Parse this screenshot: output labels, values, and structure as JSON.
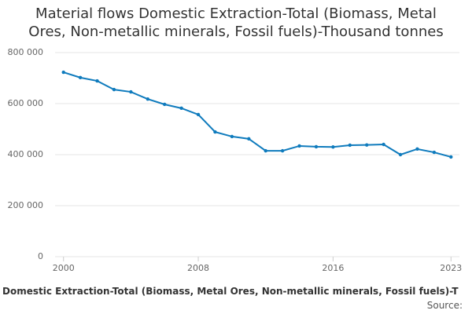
{
  "chart_data": {
    "type": "line",
    "title": "Material flows Domestic Extraction-Total (Biomass, Metal Ores, Non-metallic minerals, Fossil fuels)-Thousand tonnes",
    "x_label": "Domestic Extraction-Total (Biomass, Metal Ores, Non-metallic minerals, Fossil fuels)-T",
    "source": "Source:",
    "x": [
      2000,
      2001,
      2002,
      2003,
      2004,
      2005,
      2006,
      2007,
      2008,
      2009,
      2010,
      2011,
      2012,
      2013,
      2014,
      2015,
      2016,
      2017,
      2018,
      2019,
      2020,
      2021,
      2022,
      2023
    ],
    "series": [
      {
        "color": "#0f7bbd",
        "values": [
          723000,
          702000,
          689000,
          655000,
          646000,
          618000,
          597000,
          582000,
          557000,
          489000,
          471000,
          462000,
          415000,
          415000,
          434000,
          431000,
          430000,
          437000,
          438000,
          440000,
          400000,
          422000,
          409000,
          391000
        ]
      }
    ],
    "xlim": [
      1999.5,
      2023.5
    ],
    "xticks": [
      2000,
      2008,
      2016,
      2023
    ],
    "ylim": [
      0,
      800000
    ],
    "yticks": [
      {
        "value": 0,
        "label": "0"
      },
      {
        "value": 200000,
        "label": "200 000"
      },
      {
        "value": 400000,
        "label": "400 000"
      },
      {
        "value": 600000,
        "label": "600 000"
      },
      {
        "value": 800000,
        "label": "800 000"
      }
    ],
    "grid": true
  }
}
